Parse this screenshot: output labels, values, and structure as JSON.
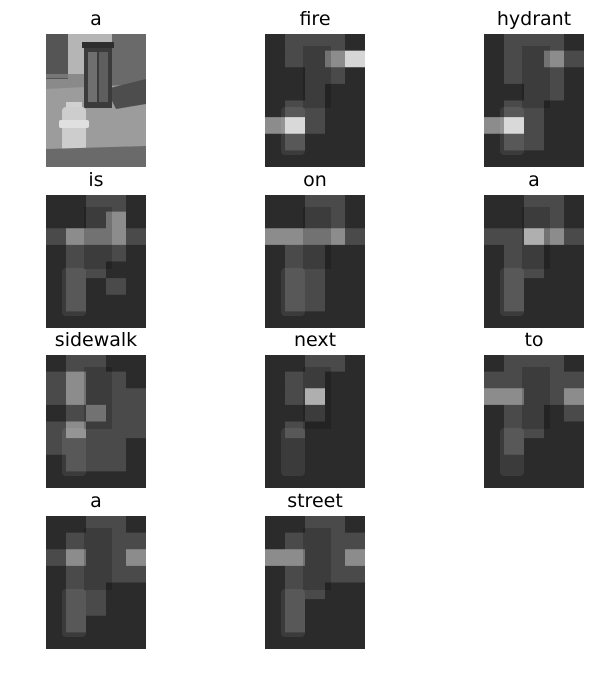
{
  "panels": [
    {
      "word": "a",
      "attention": "original"
    },
    {
      "word": "fire",
      "attention": [
        [
          0,
          1,
          1,
          1,
          0
        ],
        [
          0,
          1,
          1,
          2,
          3
        ],
        [
          0,
          0,
          1,
          1,
          0
        ],
        [
          0,
          0,
          1,
          0,
          0
        ],
        [
          0,
          1,
          1,
          0,
          0
        ],
        [
          2,
          3,
          1,
          0,
          0
        ],
        [
          0,
          1,
          0,
          0,
          0
        ],
        [
          0,
          0,
          0,
          0,
          0
        ]
      ]
    },
    {
      "word": "hydrant",
      "attention": [
        [
          0,
          1,
          1,
          1,
          0
        ],
        [
          0,
          1,
          1,
          2,
          1
        ],
        [
          0,
          1,
          1,
          1,
          0
        ],
        [
          0,
          0,
          1,
          1,
          0
        ],
        [
          0,
          1,
          1,
          0,
          0
        ],
        [
          2,
          3,
          1,
          0,
          0
        ],
        [
          0,
          1,
          1,
          0,
          0
        ],
        [
          0,
          0,
          0,
          0,
          0
        ]
      ]
    },
    {
      "word": "is",
      "attention": [
        [
          0,
          0,
          1,
          1,
          0
        ],
        [
          0,
          0,
          1,
          2,
          0
        ],
        [
          1,
          2,
          2,
          2,
          1
        ],
        [
          0,
          1,
          1,
          1,
          0
        ],
        [
          0,
          1,
          1,
          0,
          0
        ],
        [
          0,
          1,
          0,
          1,
          0
        ],
        [
          0,
          1,
          0,
          0,
          0
        ],
        [
          0,
          0,
          0,
          0,
          0
        ]
      ]
    },
    {
      "word": "on",
      "attention": [
        [
          0,
          0,
          1,
          1,
          0
        ],
        [
          0,
          0,
          1,
          1,
          0
        ],
        [
          2,
          2,
          2,
          2,
          1
        ],
        [
          0,
          1,
          1,
          0,
          0
        ],
        [
          0,
          1,
          1,
          0,
          0
        ],
        [
          0,
          1,
          1,
          0,
          0
        ],
        [
          0,
          1,
          1,
          0,
          0
        ],
        [
          0,
          0,
          0,
          0,
          0
        ]
      ]
    },
    {
      "word": "a",
      "attention": [
        [
          0,
          0,
          1,
          1,
          0
        ],
        [
          0,
          0,
          1,
          1,
          0
        ],
        [
          1,
          1,
          3,
          2,
          1
        ],
        [
          0,
          1,
          1,
          0,
          0
        ],
        [
          0,
          1,
          1,
          0,
          0
        ],
        [
          0,
          1,
          0,
          0,
          0
        ],
        [
          0,
          1,
          0,
          0,
          0
        ],
        [
          0,
          0,
          0,
          0,
          0
        ]
      ]
    },
    {
      "word": "sidewalk",
      "attention": [
        [
          0,
          1,
          1,
          0,
          0
        ],
        [
          1,
          2,
          1,
          1,
          0
        ],
        [
          1,
          2,
          1,
          1,
          1
        ],
        [
          0,
          1,
          2,
          1,
          1
        ],
        [
          1,
          2,
          1,
          1,
          1
        ],
        [
          1,
          1,
          1,
          1,
          0
        ],
        [
          0,
          1,
          1,
          1,
          0
        ],
        [
          0,
          0,
          0,
          0,
          0
        ]
      ]
    },
    {
      "word": "next",
      "attention": [
        [
          0,
          0,
          1,
          1,
          0
        ],
        [
          0,
          1,
          1,
          0,
          0
        ],
        [
          0,
          1,
          3,
          0,
          0
        ],
        [
          0,
          0,
          1,
          0,
          0
        ],
        [
          0,
          1,
          0,
          0,
          0
        ],
        [
          0,
          0,
          0,
          0,
          0
        ],
        [
          0,
          0,
          0,
          0,
          0
        ],
        [
          0,
          0,
          0,
          0,
          0
        ]
      ]
    },
    {
      "word": "to",
      "attention": [
        [
          0,
          1,
          1,
          1,
          0
        ],
        [
          1,
          1,
          1,
          1,
          1
        ],
        [
          2,
          2,
          1,
          1,
          2
        ],
        [
          0,
          1,
          1,
          0,
          1
        ],
        [
          0,
          1,
          1,
          0,
          0
        ],
        [
          0,
          1,
          0,
          0,
          0
        ],
        [
          0,
          0,
          0,
          0,
          0
        ],
        [
          0,
          0,
          0,
          0,
          0
        ]
      ]
    },
    {
      "word": "a",
      "attention": [
        [
          0,
          0,
          1,
          1,
          0
        ],
        [
          0,
          1,
          1,
          1,
          1
        ],
        [
          1,
          2,
          1,
          1,
          2
        ],
        [
          0,
          1,
          1,
          1,
          1
        ],
        [
          0,
          1,
          1,
          0,
          0
        ],
        [
          0,
          1,
          1,
          0,
          0
        ],
        [
          0,
          1,
          0,
          0,
          0
        ],
        [
          0,
          0,
          0,
          0,
          0
        ]
      ]
    },
    {
      "word": "street",
      "attention": [
        [
          0,
          0,
          1,
          1,
          0
        ],
        [
          0,
          1,
          1,
          1,
          1
        ],
        [
          2,
          2,
          1,
          1,
          2
        ],
        [
          0,
          1,
          1,
          1,
          1
        ],
        [
          0,
          1,
          1,
          0,
          0
        ],
        [
          0,
          1,
          0,
          0,
          0
        ],
        [
          0,
          1,
          0,
          0,
          0
        ],
        [
          0,
          0,
          0,
          0,
          0
        ]
      ]
    }
  ],
  "colors": {
    "background": "#ffffff",
    "label": "#000000",
    "attention_levels": [
      "#2b2b2b",
      "#4a4a4a",
      "#8c8c8c",
      "#d6d6d6"
    ]
  }
}
